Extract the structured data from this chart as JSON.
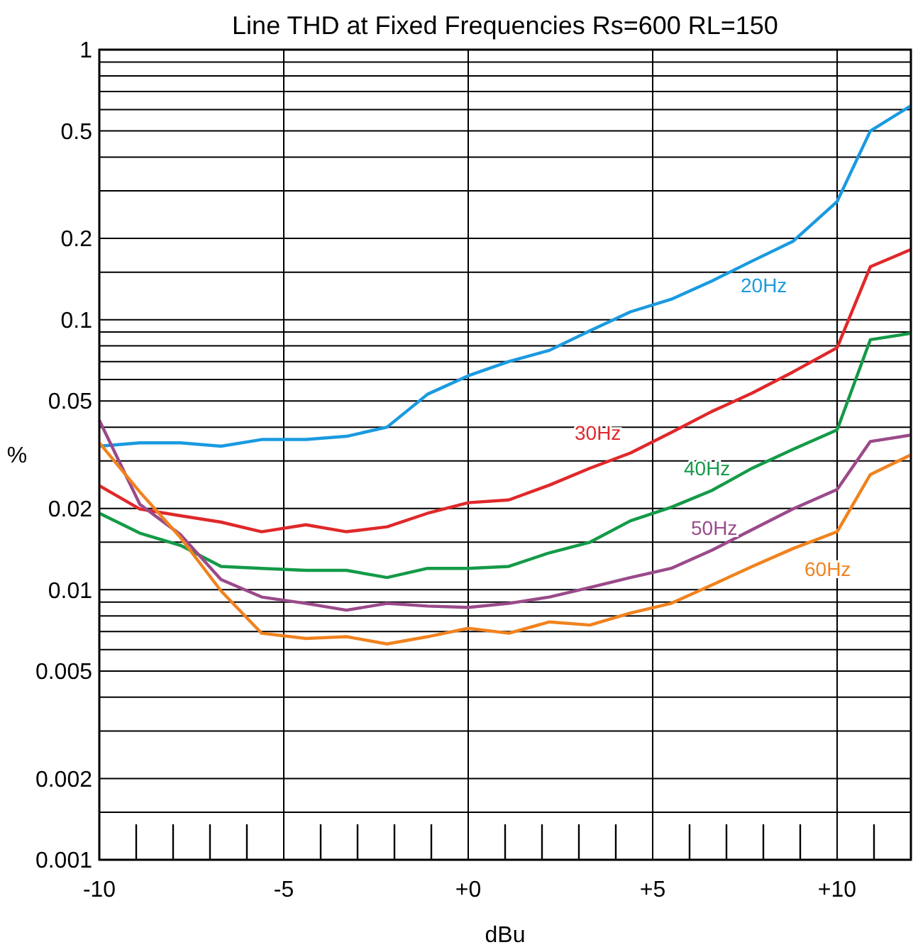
{
  "chart_data": {
    "type": "line",
    "title": "Line THD at Fixed Frequencies Rs=600 RL=150",
    "xlabel": "dBu",
    "ylabel": "%",
    "x": [
      -10,
      -8.9,
      -7.8,
      -6.7,
      -5.6,
      -4.4,
      -3.3,
      -2.2,
      -1.1,
      0,
      1.1,
      2.2,
      3.3,
      4.4,
      5.5,
      6.6,
      7.7,
      8.8,
      10,
      10.9,
      12
    ],
    "series": [
      {
        "name": "20Hz",
        "color": "#1a9ae0",
        "values": [
          0.034,
          0.035,
          0.035,
          0.034,
          0.036,
          0.036,
          0.037,
          0.04,
          0.053,
          0.062,
          0.07,
          0.077,
          0.091,
          0.107,
          0.119,
          0.139,
          0.165,
          0.195,
          0.274,
          0.5,
          0.62
        ]
      },
      {
        "name": "30Hz",
        "color": "#e0282a",
        "values": [
          0.0243,
          0.0199,
          0.0188,
          0.0178,
          0.0164,
          0.0174,
          0.0164,
          0.0171,
          0.0192,
          0.021,
          0.0215,
          0.0244,
          0.0282,
          0.0321,
          0.0382,
          0.0457,
          0.0535,
          0.064,
          0.0788,
          0.157,
          0.182
        ]
      },
      {
        "name": "40Hz",
        "color": "#149a48",
        "values": [
          0.0192,
          0.0162,
          0.0146,
          0.0122,
          0.012,
          0.0118,
          0.0118,
          0.0111,
          0.012,
          0.012,
          0.0122,
          0.0137,
          0.015,
          0.018,
          0.0202,
          0.0233,
          0.0282,
          0.0331,
          0.0391,
          0.0843,
          0.0891
        ]
      },
      {
        "name": "50Hz",
        "color": "#9a4a8a",
        "values": [
          0.0424,
          0.0207,
          0.016,
          0.0109,
          0.0094,
          0.0089,
          0.0084,
          0.0089,
          0.0087,
          0.0086,
          0.0089,
          0.0094,
          0.0102,
          0.0111,
          0.012,
          0.014,
          0.0167,
          0.0199,
          0.0235,
          0.0354,
          0.0374
        ]
      },
      {
        "name": "60Hz",
        "color": "#f0821e",
        "values": [
          0.035,
          0.023,
          0.0156,
          0.0099,
          0.0069,
          0.0066,
          0.0067,
          0.0063,
          0.0067,
          0.0072,
          0.0069,
          0.0076,
          0.0074,
          0.0082,
          0.0089,
          0.0104,
          0.0122,
          0.0142,
          0.0164,
          0.0267,
          0.0316
        ]
      }
    ],
    "log": "y",
    "xlim": [
      -10,
      12
    ],
    "ylim": [
      0.001,
      1
    ],
    "xticks": [
      {
        "value": -10,
        "label": "-10"
      },
      {
        "value": -5,
        "label": "-5"
      },
      {
        "value": 0,
        "label": "+0"
      },
      {
        "value": 5,
        "label": "+5"
      },
      {
        "value": 10,
        "label": "+10"
      }
    ],
    "yticks": [
      0.001,
      {
        "value": 0.0015,
        "label": null
      },
      0.002,
      {
        "value": 0.003,
        "label": null
      },
      {
        "value": 0.004,
        "label": null
      },
      0.005,
      {
        "value": 0.006,
        "label": null
      },
      {
        "value": 0.007,
        "label": null
      },
      {
        "value": 0.008,
        "label": null
      },
      {
        "value": 0.009,
        "label": null
      },
      0.01,
      {
        "value": 0.015,
        "label": null
      },
      0.02,
      {
        "value": 0.03,
        "label": null
      },
      {
        "value": 0.04,
        "label": null
      },
      0.05,
      {
        "value": 0.06,
        "label": null
      },
      {
        "value": 0.07,
        "label": null
      },
      {
        "value": 0.08,
        "label": null
      },
      {
        "value": 0.09,
        "label": null
      },
      0.1,
      {
        "value": 0.15,
        "label": null
      },
      0.2,
      {
        "value": 0.3,
        "label": null
      },
      {
        "value": 0.4,
        "label": null
      },
      0.5,
      {
        "value": 0.6,
        "label": null
      },
      {
        "value": 0.7,
        "label": null
      },
      {
        "value": 0.8,
        "label": null
      },
      {
        "value": 0.9,
        "label": null
      },
      1
    ],
    "grid": true,
    "legend": false,
    "marker": "none",
    "line_style": "solid"
  }
}
